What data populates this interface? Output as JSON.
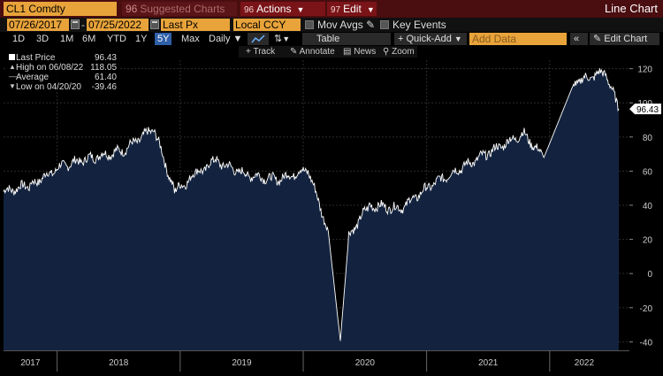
{
  "header": {
    "ticker": "CL1 Comdty",
    "suggested_code": "96",
    "suggested": "Suggested Charts",
    "actions_code": "96",
    "actions": "Actions",
    "edit_code": "97",
    "edit": "Edit",
    "title": "Line Chart"
  },
  "controls": {
    "start_date": "07/26/2017",
    "dash": "-",
    "end_date": "07/25/2022",
    "price_field": "Last Px",
    "currency": "Local CCY",
    "mov_avgs": "Mov Avgs",
    "key_events": "Key Events"
  },
  "toolbar": {
    "periods": [
      "1D",
      "3D",
      "1M",
      "6M",
      "YTD",
      "1Y",
      "5Y",
      "Max"
    ],
    "selected_period": "5Y",
    "frequency": "Daily",
    "table": "Table",
    "quick_add": "Quick-Add",
    "add_data_placeholder": "Add Data",
    "edit_chart": "Edit Chart"
  },
  "tools": {
    "track": "Track",
    "annotate": "Annotate",
    "news": "News",
    "zoom": "Zoom"
  },
  "legend": {
    "last_label": "Last Price",
    "last_value": "96.43",
    "high_label": "High on 06/08/22",
    "high_value": "118.05",
    "avg_label": "Average",
    "avg_value": "61.40",
    "low_label": "Low on 04/20/20",
    "low_value": "-39.46"
  },
  "chart_data": {
    "type": "area",
    "series_name": "Last Price",
    "last_value_tag": "96.43",
    "x": [
      "2017-07",
      "2017-10",
      "2018-01",
      "2018-04",
      "2018-07",
      "2018-10",
      "2018-12",
      "2019-02",
      "2019-04",
      "2019-07",
      "2019-10",
      "2020-01",
      "2020-03",
      "2020-04-20",
      "2020-05",
      "2020-07",
      "2020-10",
      "2021-01",
      "2021-04",
      "2021-07",
      "2021-10",
      "2021-12",
      "2022-03",
      "2022-06",
      "2022-07"
    ],
    "y": [
      48,
      52,
      63,
      68,
      72,
      85,
      48,
      58,
      66,
      58,
      55,
      61,
      25,
      -39.46,
      22,
      40,
      38,
      52,
      62,
      72,
      82,
      68,
      112,
      118.05,
      96.43
    ],
    "x_ticks": [
      "2017",
      "2018",
      "2019",
      "2020",
      "2021",
      "2022"
    ],
    "y_ticks": [
      -40,
      -20,
      0,
      20,
      40,
      60,
      80,
      100,
      120
    ],
    "ylim": [
      -45,
      125
    ],
    "line_color": "#ffffff",
    "fill_color": "#13233f",
    "grid": true
  }
}
